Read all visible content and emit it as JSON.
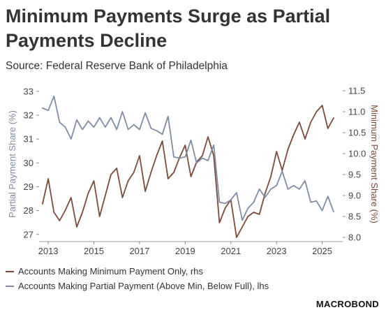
{
  "title": "Minimum Payments Surge as Partial Payments Decline",
  "subtitle": "Source: Federal Reserve Bank of Philadelphia",
  "logo": "MACROBOND",
  "chart_data": {
    "type": "line",
    "ylabel_left": "Partial Payment Share (%)",
    "ylabel_right": "Minimum Payment Share (%)",
    "xlim": [
      2012.6,
      2025.9
    ],
    "ylim_left": [
      26.7,
      33.2
    ],
    "ylim_right": [
      7.9,
      11.6
    ],
    "xticks": [
      2013,
      2015,
      2017,
      2019,
      2021,
      2023,
      2025
    ],
    "yticks_left": [
      27,
      28,
      29,
      30,
      31,
      32,
      33
    ],
    "yticks_right": [
      8.0,
      8.5,
      9.0,
      9.5,
      10.0,
      10.5,
      11.0,
      11.5
    ],
    "ytick_labels_right": [
      "8.0",
      "8.5",
      "9.0",
      "9.5",
      "10.0",
      "10.5",
      "11.0",
      "11.5"
    ],
    "grid": false,
    "series": [
      {
        "name": "Accounts Making Minimum Payment Only, rhs",
        "axis": "right",
        "color": "#7a4a3a",
        "x": [
          2012.75,
          2013.0,
          2013.25,
          2013.5,
          2013.75,
          2014.0,
          2014.25,
          2014.5,
          2014.75,
          2015.0,
          2015.25,
          2015.5,
          2015.75,
          2016.0,
          2016.25,
          2016.5,
          2016.75,
          2017.0,
          2017.25,
          2017.5,
          2017.75,
          2018.0,
          2018.25,
          2018.5,
          2018.75,
          2019.0,
          2019.25,
          2019.5,
          2019.75,
          2020.0,
          2020.25,
          2020.5,
          2020.75,
          2021.0,
          2021.25,
          2021.5,
          2021.75,
          2022.0,
          2022.25,
          2022.5,
          2022.75,
          2023.0,
          2023.25,
          2023.5,
          2023.75,
          2024.0,
          2024.25,
          2024.5,
          2024.75,
          2025.0,
          2025.25,
          2025.5
        ],
        "values": [
          8.8,
          9.4,
          8.6,
          8.4,
          8.65,
          8.95,
          8.25,
          8.6,
          9.05,
          9.35,
          8.5,
          9.0,
          9.5,
          9.65,
          8.95,
          9.35,
          9.55,
          9.95,
          9.1,
          9.55,
          9.95,
          10.3,
          9.4,
          9.55,
          9.9,
          10.2,
          9.45,
          9.8,
          9.95,
          10.4,
          9.95,
          8.35,
          8.7,
          8.9,
          8.0,
          8.25,
          8.5,
          8.6,
          8.55,
          9.05,
          9.45,
          10.05,
          9.6,
          10.1,
          10.45,
          10.75,
          10.35,
          10.75,
          11.0,
          11.15,
          10.6,
          10.85
        ]
      },
      {
        "name": "Accounts Making Partial Payment (Above Min, Below Full), lhs",
        "axis": "left",
        "color": "#7f8da3",
        "x": [
          2012.75,
          2013.0,
          2013.25,
          2013.5,
          2013.75,
          2014.0,
          2014.25,
          2014.5,
          2014.75,
          2015.0,
          2015.25,
          2015.5,
          2015.75,
          2016.0,
          2016.25,
          2016.5,
          2016.75,
          2017.0,
          2017.25,
          2017.5,
          2017.75,
          2018.0,
          2018.25,
          2018.5,
          2018.75,
          2019.0,
          2019.25,
          2019.5,
          2019.75,
          2020.0,
          2020.25,
          2020.5,
          2020.75,
          2021.0,
          2021.25,
          2021.5,
          2021.75,
          2022.0,
          2022.25,
          2022.5,
          2022.75,
          2023.0,
          2023.25,
          2023.5,
          2023.75,
          2024.0,
          2024.25,
          2024.5,
          2024.75,
          2025.0,
          2025.25,
          2025.5
        ],
        "values": [
          32.3,
          32.2,
          32.8,
          31.7,
          31.5,
          31.0,
          31.8,
          31.4,
          31.75,
          31.5,
          31.9,
          31.5,
          31.9,
          31.4,
          32.15,
          31.4,
          31.6,
          31.4,
          32.1,
          31.45,
          31.35,
          31.2,
          31.95,
          30.25,
          30.2,
          30.25,
          30.95,
          30.0,
          30.2,
          30.1,
          30.75,
          28.35,
          28.3,
          28.45,
          28.75,
          27.6,
          28.1,
          28.35,
          28.9,
          28.55,
          28.9,
          29.05,
          29.65,
          28.9,
          29.05,
          28.9,
          29.25,
          28.35,
          28.4,
          28.0,
          28.6,
          27.95
        ]
      }
    ]
  }
}
